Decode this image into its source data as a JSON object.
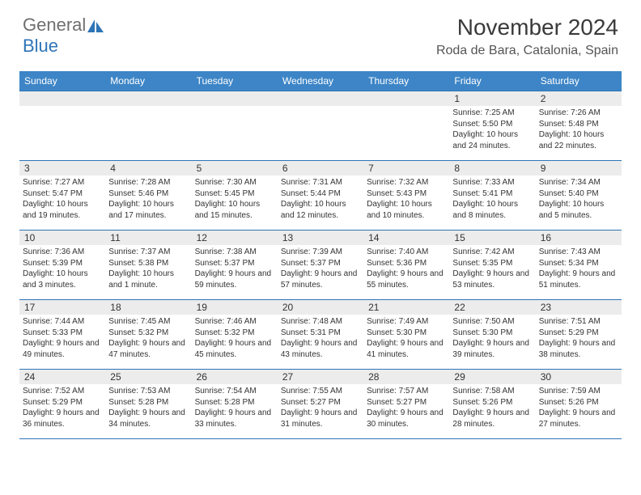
{
  "logo": {
    "general": "General",
    "blue": "Blue"
  },
  "title": "November 2024",
  "location": "Roda de Bara, Catalonia, Spain",
  "colors": {
    "header_bg": "#3d85c6",
    "header_text": "#ffffff",
    "border": "#2e75b6",
    "daynum_bg": "#ececec",
    "text": "#333333",
    "logo_gray": "#6f6f6f",
    "logo_blue": "#2e75b6"
  },
  "weekdays": [
    "Sunday",
    "Monday",
    "Tuesday",
    "Wednesday",
    "Thursday",
    "Friday",
    "Saturday"
  ],
  "weeks": [
    [
      null,
      null,
      null,
      null,
      null,
      {
        "n": "1",
        "sr": "Sunrise: 7:25 AM",
        "ss": "Sunset: 5:50 PM",
        "dl": "Daylight: 10 hours and 24 minutes."
      },
      {
        "n": "2",
        "sr": "Sunrise: 7:26 AM",
        "ss": "Sunset: 5:48 PM",
        "dl": "Daylight: 10 hours and 22 minutes."
      }
    ],
    [
      {
        "n": "3",
        "sr": "Sunrise: 7:27 AM",
        "ss": "Sunset: 5:47 PM",
        "dl": "Daylight: 10 hours and 19 minutes."
      },
      {
        "n": "4",
        "sr": "Sunrise: 7:28 AM",
        "ss": "Sunset: 5:46 PM",
        "dl": "Daylight: 10 hours and 17 minutes."
      },
      {
        "n": "5",
        "sr": "Sunrise: 7:30 AM",
        "ss": "Sunset: 5:45 PM",
        "dl": "Daylight: 10 hours and 15 minutes."
      },
      {
        "n": "6",
        "sr": "Sunrise: 7:31 AM",
        "ss": "Sunset: 5:44 PM",
        "dl": "Daylight: 10 hours and 12 minutes."
      },
      {
        "n": "7",
        "sr": "Sunrise: 7:32 AM",
        "ss": "Sunset: 5:43 PM",
        "dl": "Daylight: 10 hours and 10 minutes."
      },
      {
        "n": "8",
        "sr": "Sunrise: 7:33 AM",
        "ss": "Sunset: 5:41 PM",
        "dl": "Daylight: 10 hours and 8 minutes."
      },
      {
        "n": "9",
        "sr": "Sunrise: 7:34 AM",
        "ss": "Sunset: 5:40 PM",
        "dl": "Daylight: 10 hours and 5 minutes."
      }
    ],
    [
      {
        "n": "10",
        "sr": "Sunrise: 7:36 AM",
        "ss": "Sunset: 5:39 PM",
        "dl": "Daylight: 10 hours and 3 minutes."
      },
      {
        "n": "11",
        "sr": "Sunrise: 7:37 AM",
        "ss": "Sunset: 5:38 PM",
        "dl": "Daylight: 10 hours and 1 minute."
      },
      {
        "n": "12",
        "sr": "Sunrise: 7:38 AM",
        "ss": "Sunset: 5:37 PM",
        "dl": "Daylight: 9 hours and 59 minutes."
      },
      {
        "n": "13",
        "sr": "Sunrise: 7:39 AM",
        "ss": "Sunset: 5:37 PM",
        "dl": "Daylight: 9 hours and 57 minutes."
      },
      {
        "n": "14",
        "sr": "Sunrise: 7:40 AM",
        "ss": "Sunset: 5:36 PM",
        "dl": "Daylight: 9 hours and 55 minutes."
      },
      {
        "n": "15",
        "sr": "Sunrise: 7:42 AM",
        "ss": "Sunset: 5:35 PM",
        "dl": "Daylight: 9 hours and 53 minutes."
      },
      {
        "n": "16",
        "sr": "Sunrise: 7:43 AM",
        "ss": "Sunset: 5:34 PM",
        "dl": "Daylight: 9 hours and 51 minutes."
      }
    ],
    [
      {
        "n": "17",
        "sr": "Sunrise: 7:44 AM",
        "ss": "Sunset: 5:33 PM",
        "dl": "Daylight: 9 hours and 49 minutes."
      },
      {
        "n": "18",
        "sr": "Sunrise: 7:45 AM",
        "ss": "Sunset: 5:32 PM",
        "dl": "Daylight: 9 hours and 47 minutes."
      },
      {
        "n": "19",
        "sr": "Sunrise: 7:46 AM",
        "ss": "Sunset: 5:32 PM",
        "dl": "Daylight: 9 hours and 45 minutes."
      },
      {
        "n": "20",
        "sr": "Sunrise: 7:48 AM",
        "ss": "Sunset: 5:31 PM",
        "dl": "Daylight: 9 hours and 43 minutes."
      },
      {
        "n": "21",
        "sr": "Sunrise: 7:49 AM",
        "ss": "Sunset: 5:30 PM",
        "dl": "Daylight: 9 hours and 41 minutes."
      },
      {
        "n": "22",
        "sr": "Sunrise: 7:50 AM",
        "ss": "Sunset: 5:30 PM",
        "dl": "Daylight: 9 hours and 39 minutes."
      },
      {
        "n": "23",
        "sr": "Sunrise: 7:51 AM",
        "ss": "Sunset: 5:29 PM",
        "dl": "Daylight: 9 hours and 38 minutes."
      }
    ],
    [
      {
        "n": "24",
        "sr": "Sunrise: 7:52 AM",
        "ss": "Sunset: 5:29 PM",
        "dl": "Daylight: 9 hours and 36 minutes."
      },
      {
        "n": "25",
        "sr": "Sunrise: 7:53 AM",
        "ss": "Sunset: 5:28 PM",
        "dl": "Daylight: 9 hours and 34 minutes."
      },
      {
        "n": "26",
        "sr": "Sunrise: 7:54 AM",
        "ss": "Sunset: 5:28 PM",
        "dl": "Daylight: 9 hours and 33 minutes."
      },
      {
        "n": "27",
        "sr": "Sunrise: 7:55 AM",
        "ss": "Sunset: 5:27 PM",
        "dl": "Daylight: 9 hours and 31 minutes."
      },
      {
        "n": "28",
        "sr": "Sunrise: 7:57 AM",
        "ss": "Sunset: 5:27 PM",
        "dl": "Daylight: 9 hours and 30 minutes."
      },
      {
        "n": "29",
        "sr": "Sunrise: 7:58 AM",
        "ss": "Sunset: 5:26 PM",
        "dl": "Daylight: 9 hours and 28 minutes."
      },
      {
        "n": "30",
        "sr": "Sunrise: 7:59 AM",
        "ss": "Sunset: 5:26 PM",
        "dl": "Daylight: 9 hours and 27 minutes."
      }
    ]
  ]
}
